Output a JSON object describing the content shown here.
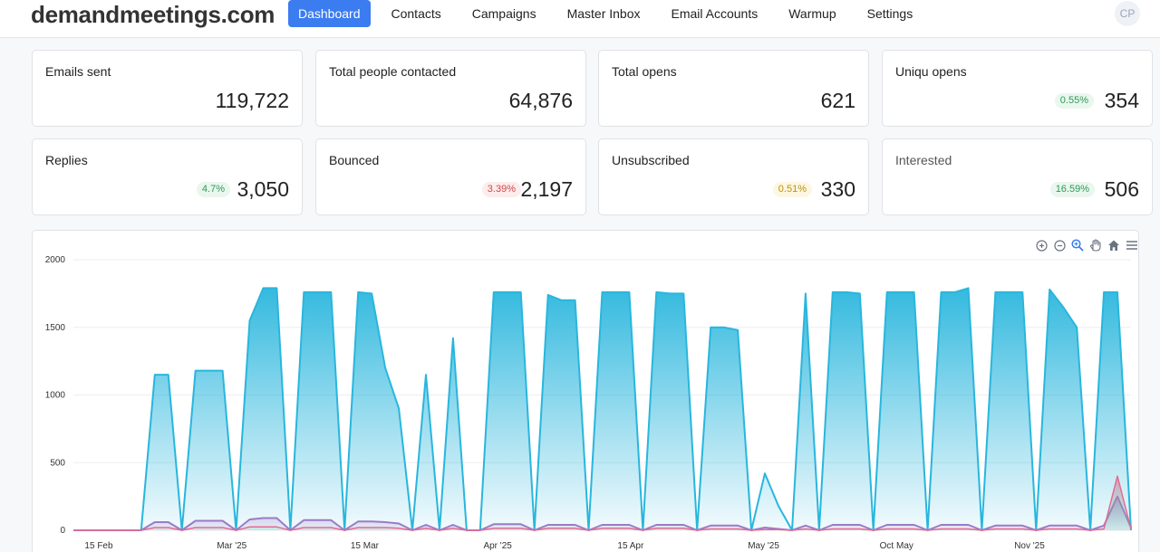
{
  "header": {
    "logo": "demandmeetings.com",
    "nav": [
      "Dashboard",
      "Contacts",
      "Campaigns",
      "Master Inbox",
      "Email Accounts",
      "Warmup",
      "Settings"
    ],
    "active_nav": "Dashboard",
    "avatar_initials": "CP"
  },
  "stats": {
    "emails_sent": {
      "label": "Emails sent",
      "value": "119,722"
    },
    "people_contacted": {
      "label": "Total people contacted",
      "value": "64,876"
    },
    "total_opens": {
      "label": "Total opens",
      "value": "621"
    },
    "unique_opens": {
      "label": "Uniqu opens",
      "value": "354",
      "badge": "0.55%"
    },
    "replies": {
      "label": "Replies",
      "value": "3,050",
      "badge": "4.7%"
    },
    "bounced": {
      "label": "Bounced",
      "value": "2,197",
      "badge": "3.39%"
    },
    "unsubscribed": {
      "label": "Unsubscribed",
      "value": "330",
      "badge": "0.51%"
    },
    "interested": {
      "label": "Interested",
      "value": "506",
      "badge": "16.59%"
    }
  },
  "colors": {
    "accent": "#3b7cf0",
    "series_sent": "#29b6dd",
    "series_opens": "#9b7bc7",
    "series_replies": "#3ed6a6",
    "series_bounced": "#e46a92"
  },
  "toolbar_icons": [
    "zoom-in-icon",
    "zoom-out-icon",
    "magnifier-icon",
    "pan-hand-icon",
    "home-icon",
    "menu-icon"
  ],
  "chart_data": {
    "type": "area",
    "ylim": [
      0,
      2000
    ],
    "yticks": [
      0,
      500,
      1000,
      1500,
      2000
    ],
    "xticks": [
      "15 Feb",
      "Mar '25",
      "15 Mar",
      "Apr '25",
      "15 Apr",
      "May '25",
      "Oct May",
      "Nov '25"
    ],
    "grid": true,
    "series": [
      {
        "values": [
          0,
          0,
          0,
          0,
          0,
          0,
          1150,
          1150,
          0,
          1180,
          1180,
          1180,
          0,
          1550,
          1790,
          1790,
          0,
          1760,
          1760,
          1760,
          0,
          1760,
          1750,
          1200,
          900,
          0,
          1150,
          0,
          1420,
          0,
          0,
          1760,
          1760,
          1760,
          0,
          1740,
          1700,
          1700,
          0,
          1760,
          1760,
          1760,
          0,
          1760,
          1750,
          1750,
          0,
          1500,
          1500,
          1480,
          0,
          420,
          180,
          0,
          1750,
          0,
          1760,
          1760,
          1750,
          0,
          1760,
          1760,
          1760,
          0,
          1760,
          1760,
          1790,
          0,
          1760,
          1760,
          1760,
          0,
          1780,
          1650,
          1500,
          0,
          1760,
          1760,
          0
        ]
      },
      {
        "values": [
          0,
          0,
          0,
          0,
          0,
          0,
          60,
          60,
          0,
          70,
          70,
          70,
          0,
          80,
          90,
          90,
          0,
          75,
          75,
          75,
          0,
          65,
          65,
          60,
          50,
          0,
          40,
          0,
          40,
          0,
          0,
          45,
          45,
          45,
          0,
          40,
          40,
          40,
          0,
          40,
          40,
          40,
          0,
          40,
          40,
          40,
          0,
          35,
          35,
          35,
          0,
          20,
          10,
          0,
          35,
          0,
          40,
          40,
          40,
          0,
          40,
          40,
          40,
          0,
          40,
          40,
          40,
          0,
          35,
          35,
          35,
          0,
          35,
          35,
          35,
          0,
          35,
          250,
          20
        ]
      },
      {
        "values": [
          0,
          0,
          0,
          0,
          0,
          0,
          20,
          20,
          0,
          20,
          20,
          20,
          0,
          25,
          25,
          25,
          0,
          20,
          20,
          20,
          0,
          20,
          20,
          20,
          15,
          0,
          15,
          0,
          15,
          0,
          0,
          15,
          15,
          15,
          0,
          15,
          15,
          15,
          0,
          15,
          15,
          15,
          0,
          15,
          15,
          15,
          0,
          10,
          10,
          10,
          0,
          5,
          5,
          0,
          10,
          0,
          10,
          10,
          10,
          0,
          10,
          10,
          10,
          0,
          10,
          10,
          10,
          0,
          10,
          10,
          10,
          0,
          10,
          10,
          10,
          0,
          10,
          400,
          10
        ]
      }
    ]
  }
}
